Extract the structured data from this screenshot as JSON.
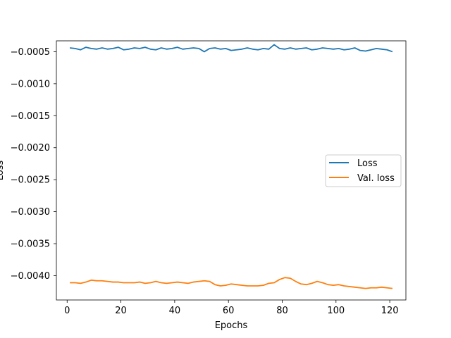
{
  "chart_data": {
    "type": "line",
    "title": "",
    "xlabel": "Epochs",
    "ylabel": "Loss",
    "xlim": [
      -4,
      126
    ],
    "ylim": [
      -0.00438,
      -0.00033
    ],
    "xticks": [
      0,
      20,
      40,
      60,
      80,
      100,
      120
    ],
    "xtick_labels": [
      "0",
      "20",
      "40",
      "60",
      "80",
      "100",
      "120"
    ],
    "yticks": [
      -0.0005,
      -0.001,
      -0.0015,
      -0.002,
      -0.0025,
      -0.003,
      -0.0035,
      -0.004
    ],
    "ytick_labels": [
      "−0.0005",
      "−0.0010",
      "−0.0015",
      "−0.0020",
      "−0.0025",
      "−0.0030",
      "−0.0035",
      "−0.0040"
    ],
    "grid": false,
    "legend": {
      "position": "center-right",
      "entries": [
        "Loss",
        "Val. loss"
      ]
    },
    "series": [
      {
        "name": "Loss",
        "color": "#1f77b4",
        "x": [
          1,
          3,
          5,
          7,
          9,
          11,
          13,
          15,
          17,
          19,
          21,
          23,
          25,
          27,
          29,
          31,
          33,
          35,
          37,
          39,
          41,
          43,
          45,
          47,
          49,
          51,
          53,
          55,
          57,
          59,
          61,
          63,
          65,
          67,
          69,
          71,
          73,
          75,
          77,
          79,
          81,
          83,
          85,
          87,
          89,
          91,
          93,
          95,
          97,
          99,
          101,
          103,
          105,
          107,
          109,
          111,
          113,
          115,
          117,
          119,
          121
        ],
        "y": [
          -0.00044,
          -0.00045,
          -0.00047,
          -0.00043,
          -0.00045,
          -0.00046,
          -0.00044,
          -0.00046,
          -0.00045,
          -0.00043,
          -0.00047,
          -0.00046,
          -0.00044,
          -0.00045,
          -0.00043,
          -0.00046,
          -0.00047,
          -0.00044,
          -0.00046,
          -0.00045,
          -0.00043,
          -0.00046,
          -0.00045,
          -0.00044,
          -0.00045,
          -0.0005,
          -0.00045,
          -0.00044,
          -0.00046,
          -0.00045,
          -0.00048,
          -0.00047,
          -0.00046,
          -0.00044,
          -0.00046,
          -0.00047,
          -0.00045,
          -0.00046,
          -0.00039,
          -0.00045,
          -0.00046,
          -0.00044,
          -0.00046,
          -0.00045,
          -0.00044,
          -0.00047,
          -0.00046,
          -0.00044,
          -0.00045,
          -0.00046,
          -0.00045,
          -0.00047,
          -0.00046,
          -0.00044,
          -0.00048,
          -0.00049,
          -0.00047,
          -0.00045,
          -0.00046,
          -0.00047,
          -0.0005
        ]
      },
      {
        "name": "Val. loss",
        "color": "#ff7f0e",
        "x": [
          1,
          3,
          5,
          7,
          9,
          11,
          13,
          15,
          17,
          19,
          21,
          23,
          25,
          27,
          29,
          31,
          33,
          35,
          37,
          39,
          41,
          43,
          45,
          47,
          49,
          51,
          53,
          55,
          57,
          59,
          61,
          63,
          65,
          67,
          69,
          71,
          73,
          75,
          77,
          79,
          81,
          83,
          85,
          87,
          89,
          91,
          93,
          95,
          97,
          99,
          101,
          103,
          105,
          107,
          109,
          111,
          113,
          115,
          117,
          119,
          121
        ],
        "y": [
          -0.00411,
          -0.00411,
          -0.00412,
          -0.0041,
          -0.00407,
          -0.00408,
          -0.00408,
          -0.00409,
          -0.0041,
          -0.0041,
          -0.00411,
          -0.00411,
          -0.00411,
          -0.0041,
          -0.00412,
          -0.00411,
          -0.00409,
          -0.00411,
          -0.00412,
          -0.00411,
          -0.0041,
          -0.00411,
          -0.00412,
          -0.0041,
          -0.00409,
          -0.00408,
          -0.00409,
          -0.00414,
          -0.00416,
          -0.00415,
          -0.00413,
          -0.00414,
          -0.00415,
          -0.00416,
          -0.00416,
          -0.00416,
          -0.00415,
          -0.00412,
          -0.00411,
          -0.00406,
          -0.00403,
          -0.00404,
          -0.00409,
          -0.00413,
          -0.00414,
          -0.00412,
          -0.00409,
          -0.00411,
          -0.00414,
          -0.00415,
          -0.00414,
          -0.00416,
          -0.00417,
          -0.00418,
          -0.00419,
          -0.0042,
          -0.00419,
          -0.00419,
          -0.00418,
          -0.00419,
          -0.0042
        ]
      }
    ]
  }
}
